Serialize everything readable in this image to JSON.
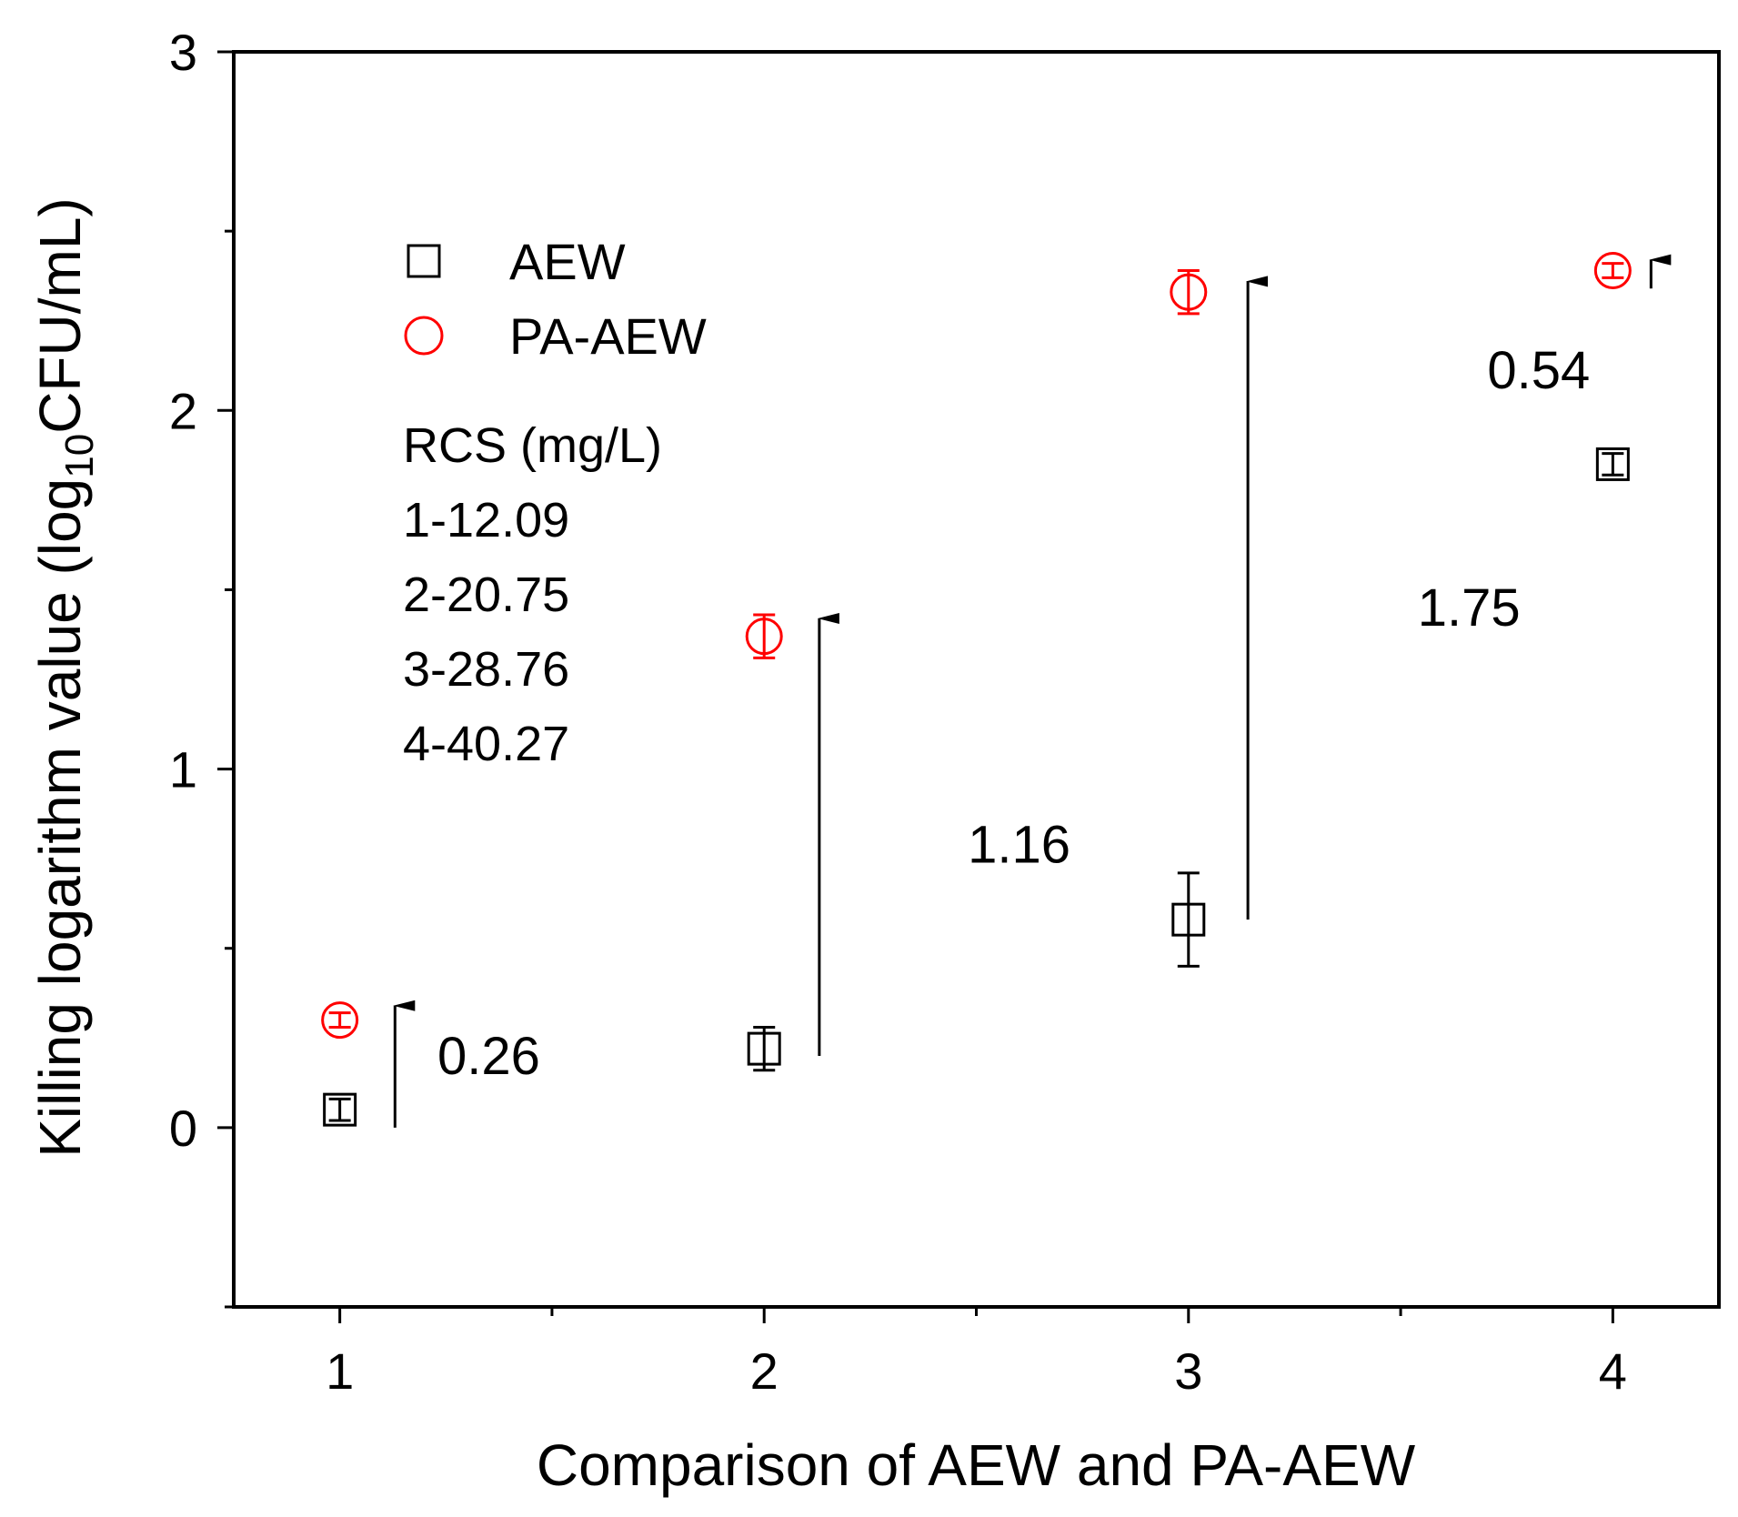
{
  "chart_data": {
    "type": "scatter",
    "xlabel": "Comparison of AEW and PA-AEW",
    "ylabel_main": "Killing logarithm value (log",
    "ylabel_sub": "10",
    "ylabel_end": "CFU/mL)",
    "xlim": [
      0.75,
      4.25
    ],
    "ylim": [
      -0.5,
      3
    ],
    "x_ticks": [
      1,
      2,
      3,
      4
    ],
    "y_ticks": [
      0,
      1,
      2,
      3
    ],
    "x_tick_labels": [
      "1",
      "2",
      "3",
      "4"
    ],
    "y_tick_labels": [
      "0",
      "1",
      "2",
      "3"
    ],
    "grid": false,
    "legend_position": "top-left",
    "series": [
      {
        "name": "AEW",
        "marker": "open-square",
        "color": "#000000",
        "x": [
          1,
          2,
          3,
          4
        ],
        "y": [
          0.05,
          0.22,
          0.58,
          1.85
        ],
        "err": [
          0.03,
          0.06,
          0.13,
          0.03
        ]
      },
      {
        "name": "PA-AEW",
        "marker": "open-circle",
        "color": "#ff0000",
        "x": [
          1,
          2,
          3,
          4
        ],
        "y": [
          0.3,
          1.37,
          2.33,
          2.39
        ],
        "err": [
          0.02,
          0.06,
          0.06,
          0.02
        ]
      }
    ],
    "annotations": {
      "rcs_title": "RCS (mg/L)",
      "rcs_lines": [
        "1-12.09",
        "2-20.75",
        "3-28.76",
        "4-40.27"
      ],
      "differences": [
        {
          "label": "0.26",
          "x": 1.13,
          "y_from": 0.0,
          "y_to": 0.34
        },
        {
          "label": "1.16",
          "x": 2.13,
          "y_from": 0.2,
          "y_to": 1.42
        },
        {
          "label": "1.75",
          "x": 3.14,
          "y_from": 0.58,
          "y_to": 2.36
        },
        {
          "label": "0.54",
          "x": 4.09,
          "y_from": 2.34,
          "y_to": 2.42
        }
      ]
    }
  }
}
